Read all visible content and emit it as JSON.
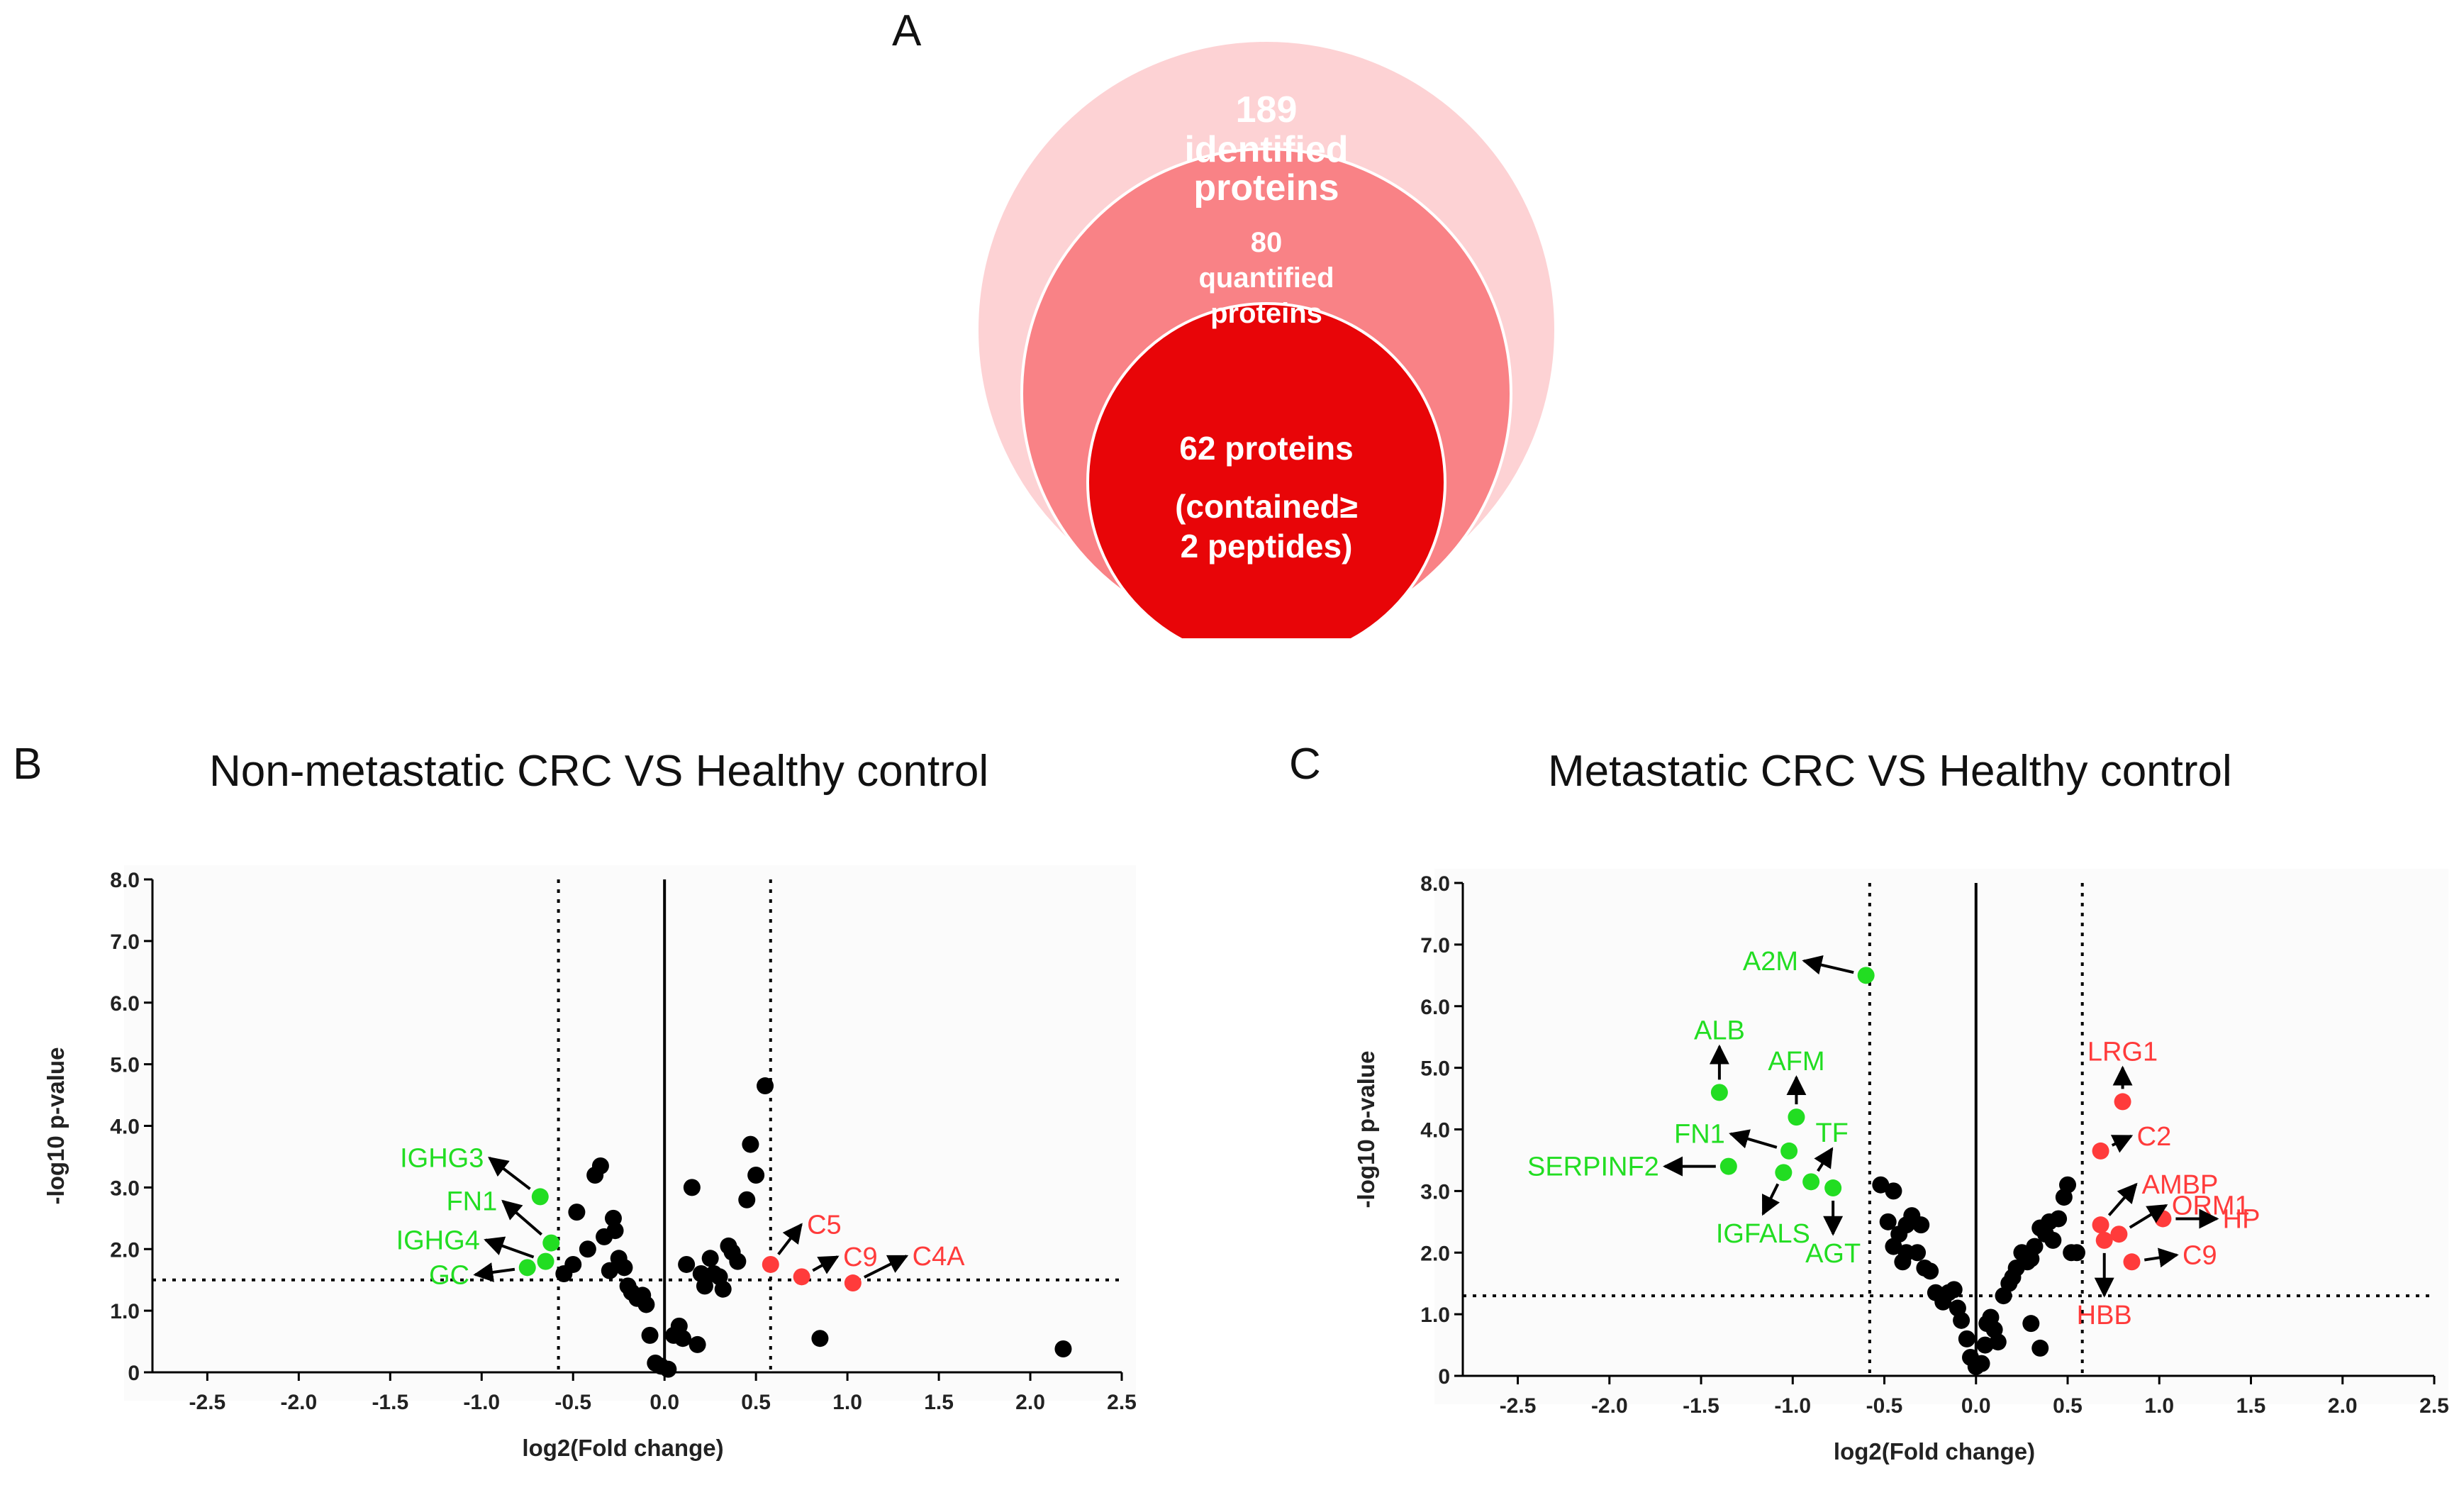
{
  "venn": {
    "letter": "A",
    "outer": {
      "count": "189",
      "line1": "identified",
      "line2": "proteins"
    },
    "middle": {
      "count": "80",
      "line1": "quantified",
      "line2": "proteins"
    },
    "inner": {
      "line1": "62 proteins",
      "line2": "(contained≥",
      "line3": "2 peptides)"
    },
    "colors": {
      "outer": "#fdd2d4",
      "middle": "#f98286",
      "inner": "#e80508"
    }
  },
  "colors": {
    "up": "#ff3b3b",
    "down": "#22dd22",
    "neutral": "#000000"
  },
  "chart_data": [
    {
      "id": "B",
      "letter": "B",
      "type": "scatter",
      "title": "Non-metastatic CRC VS Healthy control",
      "xlabel": "log2(Fold change)",
      "ylabel": "-log10 p-value",
      "xlim": [
        -2.8,
        2.5
      ],
      "ylim": [
        0,
        8.0
      ],
      "xticks": [
        "-2.5",
        "-2.0",
        "-1.5",
        "-1.0",
        "-0.5",
        "0.0",
        "0.5",
        "1.0",
        "1.5",
        "2.0",
        "2.5"
      ],
      "yticks": [
        "0",
        "1.0",
        "2.0",
        "3.0",
        "4.0",
        "5.0",
        "6.0",
        "7.0",
        "8.0"
      ],
      "thresholds": {
        "x": [
          -0.58,
          0.58
        ],
        "y": 1.5
      },
      "points_neutral": [
        [
          -0.55,
          1.6
        ],
        [
          -0.5,
          1.75
        ],
        [
          -0.48,
          2.6
        ],
        [
          -0.42,
          2.0
        ],
        [
          -0.38,
          3.2
        ],
        [
          -0.35,
          3.35
        ],
        [
          -0.33,
          2.2
        ],
        [
          -0.3,
          1.65
        ],
        [
          -0.28,
          2.5
        ],
        [
          -0.27,
          2.3
        ],
        [
          -0.25,
          1.85
        ],
        [
          -0.22,
          1.7
        ],
        [
          -0.2,
          1.4
        ],
        [
          -0.18,
          1.3
        ],
        [
          -0.15,
          1.2
        ],
        [
          -0.12,
          1.25
        ],
        [
          -0.1,
          1.1
        ],
        [
          -0.08,
          0.6
        ],
        [
          -0.05,
          0.15
        ],
        [
          -0.02,
          0.1
        ],
        [
          0.02,
          0.05
        ],
        [
          0.05,
          0.6
        ],
        [
          0.08,
          0.75
        ],
        [
          0.1,
          0.55
        ],
        [
          0.12,
          1.75
        ],
        [
          0.15,
          3.0
        ],
        [
          0.18,
          0.45
        ],
        [
          0.2,
          1.6
        ],
        [
          0.22,
          1.4
        ],
        [
          0.25,
          1.85
        ],
        [
          0.27,
          1.6
        ],
        [
          0.3,
          1.55
        ],
        [
          0.32,
          1.35
        ],
        [
          0.35,
          2.05
        ],
        [
          0.37,
          1.95
        ],
        [
          0.4,
          1.8
        ],
        [
          0.45,
          2.8
        ],
        [
          0.47,
          3.7
        ],
        [
          0.5,
          3.2
        ],
        [
          0.55,
          4.65
        ],
        [
          0.85,
          0.55
        ],
        [
          2.18,
          0.38
        ]
      ],
      "points_down": [
        [
          -0.68,
          2.85
        ],
        [
          -0.62,
          2.1
        ],
        [
          -0.65,
          1.8
        ],
        [
          -0.75,
          1.7
        ]
      ],
      "points_up": [
        [
          0.58,
          1.75
        ],
        [
          0.75,
          1.55
        ],
        [
          1.03,
          1.45
        ]
      ],
      "labels_down": [
        {
          "text": "IGHG3",
          "px": [
            -0.68,
            2.85
          ],
          "tx": [
            -1.12,
            3.85
          ]
        },
        {
          "text": "FN1",
          "px": [
            -0.62,
            2.1
          ],
          "tx": [
            -0.97,
            3.0
          ]
        },
        {
          "text": "IGHG4",
          "px": [
            -0.65,
            1.8
          ],
          "tx": [
            -1.12,
            2.3
          ]
        },
        {
          "text": "GC",
          "px": [
            -0.75,
            1.7
          ],
          "tx": [
            -1.12,
            1.55
          ]
        }
      ],
      "labels_up": [
        {
          "text": "C5",
          "px": [
            0.58,
            1.75
          ],
          "tx": [
            0.8,
            2.6
          ]
        },
        {
          "text": "C9",
          "px": [
            0.75,
            1.55
          ],
          "tx": [
            1.02,
            2.0
          ]
        },
        {
          "text": "C4A",
          "px": [
            1.03,
            1.45
          ],
          "tx": [
            1.4,
            2.0
          ]
        }
      ]
    },
    {
      "id": "C",
      "letter": "C",
      "type": "scatter",
      "title": "Metastatic CRC VS Healthy control",
      "xlabel": "log2(Fold change)",
      "ylabel": "-log10 p-value",
      "xlim": [
        -2.8,
        2.5
      ],
      "ylim": [
        0,
        8.0
      ],
      "xticks": [
        "-2.5",
        "-2.0",
        "-1.5",
        "-1.0",
        "-0.5",
        "0.0",
        "0.5",
        "1.0",
        "1.5",
        "2.0",
        "2.5"
      ],
      "yticks": [
        "0",
        "1.0",
        "2.0",
        "3.0",
        "4.0",
        "5.0",
        "6.0",
        "7.0",
        "8.0"
      ],
      "thresholds": {
        "x": [
          -0.58,
          0.58
        ],
        "y": 1.3
      },
      "points_neutral": [
        [
          -0.52,
          3.1
        ],
        [
          -0.45,
          3.0
        ],
        [
          -0.48,
          2.5
        ],
        [
          -0.42,
          2.3
        ],
        [
          -0.38,
          2.45
        ],
        [
          -0.35,
          2.6
        ],
        [
          -0.45,
          2.1
        ],
        [
          -0.4,
          1.85
        ],
        [
          -0.38,
          2.0
        ],
        [
          -0.32,
          2.0
        ],
        [
          -0.3,
          2.45
        ],
        [
          -0.28,
          1.75
        ],
        [
          -0.25,
          1.7
        ],
        [
          -0.22,
          1.35
        ],
        [
          -0.18,
          1.2
        ],
        [
          -0.15,
          1.35
        ],
        [
          -0.12,
          1.4
        ],
        [
          -0.1,
          1.1
        ],
        [
          -0.08,
          0.9
        ],
        [
          -0.05,
          0.6
        ],
        [
          -0.03,
          0.3
        ],
        [
          0.0,
          0.15
        ],
        [
          0.03,
          0.2
        ],
        [
          0.05,
          0.5
        ],
        [
          0.06,
          0.85
        ],
        [
          0.08,
          0.95
        ],
        [
          0.1,
          0.75
        ],
        [
          0.12,
          0.55
        ],
        [
          0.15,
          1.3
        ],
        [
          0.18,
          1.5
        ],
        [
          0.2,
          1.6
        ],
        [
          0.22,
          1.75
        ],
        [
          0.25,
          2.0
        ],
        [
          0.28,
          1.85
        ],
        [
          0.3,
          1.9
        ],
        [
          0.32,
          2.1
        ],
        [
          0.35,
          2.4
        ],
        [
          0.38,
          2.3
        ],
        [
          0.4,
          2.5
        ],
        [
          0.42,
          2.2
        ],
        [
          0.45,
          2.55
        ],
        [
          0.48,
          2.9
        ],
        [
          0.5,
          3.1
        ],
        [
          0.52,
          2.0
        ],
        [
          0.55,
          2.0
        ],
        [
          0.3,
          0.85
        ],
        [
          0.35,
          0.45
        ]
      ],
      "points_down": [
        [
          -0.6,
          6.5
        ],
        [
          -1.4,
          4.6
        ],
        [
          -0.98,
          4.2
        ],
        [
          -1.02,
          3.65
        ],
        [
          -1.35,
          3.4
        ],
        [
          -1.05,
          3.3
        ],
        [
          -0.9,
          3.15
        ],
        [
          -0.78,
          3.05
        ]
      ],
      "points_up": [
        [
          0.8,
          4.45
        ],
        [
          0.68,
          3.65
        ],
        [
          0.68,
          2.45
        ],
        [
          0.78,
          2.3
        ],
        [
          1.02,
          2.55
        ],
        [
          0.7,
          2.2
        ],
        [
          0.85,
          1.85
        ]
      ],
      "labels_down": [
        {
          "text": "A2M",
          "px": [
            -0.6,
            6.5
          ],
          "tx": [
            -1.03,
            6.8
          ]
        },
        {
          "text": "ALB",
          "px": [
            -1.4,
            4.6
          ],
          "tx": [
            -1.4,
            5.6
          ]
        },
        {
          "text": "AFM",
          "px": [
            -0.98,
            4.2
          ],
          "tx": [
            -0.98,
            5.1
          ]
        },
        {
          "text": "FN1",
          "px": [
            -1.02,
            3.65
          ],
          "tx": [
            -1.42,
            4.0
          ]
        },
        {
          "text": "TF",
          "px": [
            -0.9,
            3.15
          ],
          "tx": [
            -0.74,
            3.9
          ]
        },
        {
          "text": "SERPINF2",
          "px": [
            -1.35,
            3.4
          ],
          "tx": [
            -1.83,
            3.4
          ]
        },
        {
          "text": "IGFALS",
          "px": [
            -1.05,
            3.3
          ],
          "tx": [
            -1.2,
            2.4
          ]
        },
        {
          "text": "AGT",
          "px": [
            -0.78,
            3.05
          ],
          "tx": [
            -0.78,
            2.05
          ]
        }
      ],
      "labels_up": [
        {
          "text": "LRG1",
          "px": [
            0.8,
            4.45
          ],
          "tx": [
            0.8,
            5.15
          ]
        },
        {
          "text": "C2",
          "px": [
            0.68,
            3.65
          ],
          "tx": [
            0.92,
            4.0
          ]
        },
        {
          "text": "AMBP",
          "px": [
            0.68,
            2.45
          ],
          "tx": [
            0.93,
            3.3
          ]
        },
        {
          "text": "ORM1",
          "px": [
            0.78,
            2.3
          ],
          "tx": [
            1.11,
            2.9
          ]
        },
        {
          "text": "HP",
          "px": [
            1.02,
            2.55
          ],
          "tx": [
            1.4,
            2.55
          ]
        },
        {
          "text": "C9",
          "px": [
            0.85,
            1.85
          ],
          "tx": [
            1.18,
            2.0
          ]
        },
        {
          "text": "HBB",
          "px": [
            0.7,
            2.2
          ],
          "tx": [
            0.7,
            1.05
          ]
        }
      ]
    }
  ]
}
